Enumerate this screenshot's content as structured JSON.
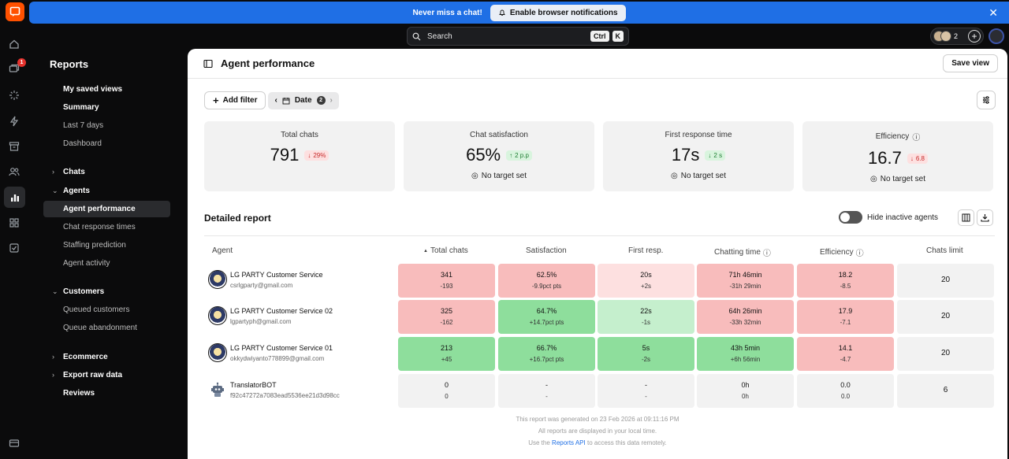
{
  "notification": {
    "message": "Never miss a chat!",
    "button_label": "Enable browser notifications"
  },
  "search": {
    "placeholder": "Search",
    "kbd1": "Ctrl",
    "kbd2": "K"
  },
  "topbar": {
    "agents_count": "2"
  },
  "rail": {
    "badge_count": "1"
  },
  "sidebar": {
    "title": "Reports",
    "saved_views": "My saved views",
    "summary": "Summary",
    "last7": "Last 7 days",
    "dashboard": "Dashboard",
    "chats": "Chats",
    "agents": "Agents",
    "agent_performance": "Agent performance",
    "chat_response_times": "Chat response times",
    "staffing_prediction": "Staffing prediction",
    "agent_activity": "Agent activity",
    "customers": "Customers",
    "queued_customers": "Queued customers",
    "queue_abandonment": "Queue abandonment",
    "ecommerce": "Ecommerce",
    "export_raw": "Export raw data",
    "reviews": "Reviews"
  },
  "main": {
    "title": "Agent performance",
    "save_view": "Save view",
    "add_filter": "Add filter",
    "date_label": "Date",
    "date_count": "2"
  },
  "cards": [
    {
      "label": "Total chats",
      "value": "791",
      "delta": "29%",
      "trend": "down",
      "info": false
    },
    {
      "label": "Chat satisfaction",
      "value": "65%",
      "delta": "2 p.p",
      "trend": "up",
      "info": false,
      "target": "No target set"
    },
    {
      "label": "First response time",
      "value": "17s",
      "delta": "2 s",
      "trend": "down-good",
      "info": false,
      "target": "No target set"
    },
    {
      "label": "Efficiency",
      "value": "16.7",
      "delta": "6.8",
      "trend": "down",
      "info": true,
      "target": "No target set"
    }
  ],
  "report": {
    "title": "Detailed report",
    "hide_inactive": "Hide inactive agents",
    "columns": [
      "Agent",
      "Total chats",
      "Satisfaction",
      "First resp.",
      "Chatting time",
      "Efficiency",
      "Chats limit"
    ],
    "rows": [
      {
        "name": "LG PARTY Customer Service",
        "email": "csrlgparty@gmail.com",
        "bot": false,
        "cells": [
          [
            "341",
            "-193"
          ],
          [
            "62.5%",
            "-9.9pct pts"
          ],
          [
            "20s",
            "+2s"
          ],
          [
            "71h 46min",
            "-31h 29min"
          ],
          [
            "18.2",
            "-8.5"
          ]
        ],
        "limit": "20"
      },
      {
        "name": "LG PARTY Customer Service 02",
        "email": "lgpartyph@gmail.com",
        "bot": false,
        "cells": [
          [
            "325",
            "-162"
          ],
          [
            "64.7%",
            "+14.7pct pts"
          ],
          [
            "22s",
            "-1s"
          ],
          [
            "64h 26min",
            "-33h 32min"
          ],
          [
            "17.9",
            "-7.1"
          ]
        ],
        "limit": "20"
      },
      {
        "name": "LG PARTY Customer Service 01",
        "email": "okkydwiyanto778899@gmail.com",
        "bot": false,
        "cells": [
          [
            "213",
            "+45"
          ],
          [
            "66.7%",
            "+16.7pct pts"
          ],
          [
            "5s",
            "-2s"
          ],
          [
            "43h 5min",
            "+6h 56min"
          ],
          [
            "14.1",
            "-4.7"
          ]
        ],
        "limit": "20"
      },
      {
        "name": "TranslatorBOT",
        "email": "f92c47272a7083ead5536ee21d3d98cc",
        "bot": true,
        "cells": [
          [
            "0",
            "0"
          ],
          [
            "-",
            "-"
          ],
          [
            "-",
            "-"
          ],
          [
            "0h",
            "0h"
          ],
          [
            "0.0",
            "0.0"
          ]
        ],
        "limit": "6"
      }
    ]
  },
  "footer": {
    "line1": "This report was generated on 23 Feb 2026 at 09:11:16 PM",
    "line2": "All reports are displayed in your local time.",
    "line3a": "Use the",
    "link": "Reports API",
    "line3b": "to access this data remotely."
  }
}
